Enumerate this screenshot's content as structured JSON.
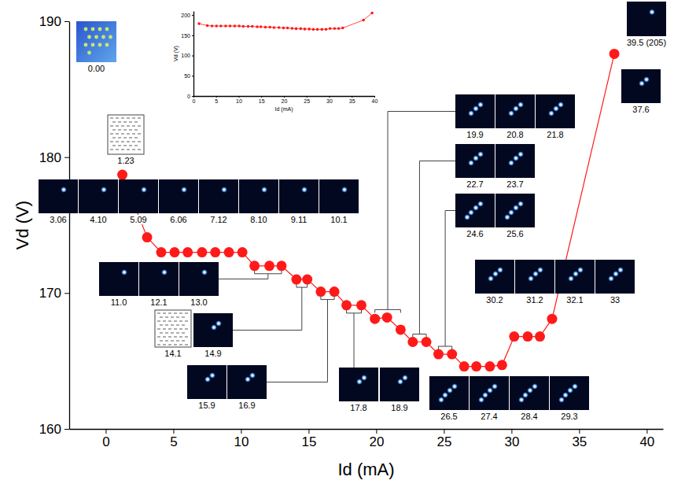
{
  "chart_data": [
    {
      "type": "line",
      "x_label": "Id (mA)",
      "y_label": "Vd (V)",
      "x": [
        1.23,
        3.06,
        4.1,
        5.09,
        6.06,
        7.12,
        8.1,
        9.11,
        10.1,
        11.0,
        12.1,
        13.0,
        14.1,
        14.9,
        15.9,
        16.9,
        17.8,
        18.9,
        19.9,
        20.8,
        21.8,
        22.7,
        23.7,
        24.6,
        25.6,
        26.5,
        27.4,
        28.4,
        29.3,
        30.2,
        31.2,
        32.1,
        33,
        37.6
      ],
      "values": [
        178.7,
        174.1,
        173.0,
        173.0,
        173.0,
        173.0,
        173.0,
        173.0,
        173.0,
        172.0,
        172.0,
        172.0,
        171.0,
        171.0,
        170.1,
        170.1,
        169.1,
        169.1,
        168.1,
        168.2,
        167.3,
        166.4,
        166.4,
        165.5,
        165.5,
        164.6,
        164.6,
        164.6,
        164.7,
        166.8,
        166.8,
        166.8,
        168.1,
        187.6
      ],
      "color": "#ff1a1a",
      "marker": "circle",
      "xlim": [
        -2.7,
        41.2
      ],
      "ylim": [
        160,
        190
      ],
      "xticks": [
        0,
        5,
        10,
        15,
        20,
        25,
        30,
        35,
        40
      ],
      "yticks": [
        160,
        170,
        180,
        190
      ],
      "images": [
        {
          "label": "0.00",
          "spots": 13
        },
        {
          "label": "1.23"
        },
        {
          "label": "3.06",
          "spots": 1
        },
        {
          "label": "4.10",
          "spots": 1
        },
        {
          "label": "5.09",
          "spots": 1
        },
        {
          "label": "6.06",
          "spots": 1
        },
        {
          "label": "7.12",
          "spots": 1
        },
        {
          "label": "8.10",
          "spots": 1
        },
        {
          "label": "9.11",
          "spots": 1
        },
        {
          "label": "10.1",
          "spots": 1
        },
        {
          "label": "11.0",
          "spots": 1
        },
        {
          "label": "12.1",
          "spots": 1
        },
        {
          "label": "13.0",
          "spots": 1
        },
        {
          "label": "14.1"
        },
        {
          "label": "14.9",
          "spots": 2
        },
        {
          "label": "15.9",
          "spots": 2
        },
        {
          "label": "16.9",
          "spots": 2
        },
        {
          "label": "17.8",
          "spots": 2
        },
        {
          "label": "18.9",
          "spots": 2
        },
        {
          "label": "19.9",
          "spots": 3
        },
        {
          "label": "20.8",
          "spots": 3
        },
        {
          "label": "21.8",
          "spots": 3
        },
        {
          "label": "22.7",
          "spots": 3
        },
        {
          "label": "23.7",
          "spots": 3
        },
        {
          "label": "24.6",
          "spots": 4
        },
        {
          "label": "25.6",
          "spots": 4
        },
        {
          "label": "26.5",
          "spots": 4
        },
        {
          "label": "27.4",
          "spots": 4
        },
        {
          "label": "28.4",
          "spots": 4
        },
        {
          "label": "29.3",
          "spots": 4
        },
        {
          "label": "30.2",
          "spots": 3
        },
        {
          "label": "31.2",
          "spots": 3
        },
        {
          "label": "32.1",
          "spots": 3
        },
        {
          "label": "33",
          "spots": 3
        },
        {
          "label": "37.6",
          "spots": 2
        },
        {
          "label": "39.5 (205)",
          "spots": 1
        }
      ]
    },
    {
      "type": "line",
      "x_label": "Id (mA)",
      "y_label": "Vd (V)",
      "x": [
        1.23,
        3.06,
        4.1,
        5.09,
        6.06,
        7.12,
        8.1,
        9.11,
        10.1,
        11.0,
        12.1,
        13.0,
        14.1,
        14.9,
        15.9,
        16.9,
        17.8,
        18.9,
        19.9,
        20.8,
        21.8,
        22.7,
        23.7,
        24.6,
        25.6,
        26.5,
        27.4,
        28.4,
        29.3,
        30.2,
        31.2,
        32.1,
        33,
        37.6,
        39.5
      ],
      "values": [
        178.7,
        174.1,
        173.0,
        173.0,
        173.0,
        173.0,
        173.0,
        173.0,
        173.0,
        172.0,
        172.0,
        172.0,
        171.0,
        171.0,
        170.1,
        170.1,
        169.1,
        169.1,
        168.1,
        168.2,
        167.3,
        166.4,
        166.4,
        165.5,
        165.5,
        164.6,
        164.6,
        164.6,
        164.7,
        166.8,
        166.8,
        166.8,
        168.1,
        187.6,
        205
      ],
      "color": "#ff1a1a",
      "marker": "circle",
      "xlim": [
        0,
        40
      ],
      "ylim": [
        0,
        210
      ],
      "xticks": [
        0,
        5,
        10,
        15,
        20,
        25,
        30,
        35,
        40
      ],
      "yticks": [
        0,
        50,
        100,
        150,
        200
      ]
    }
  ]
}
